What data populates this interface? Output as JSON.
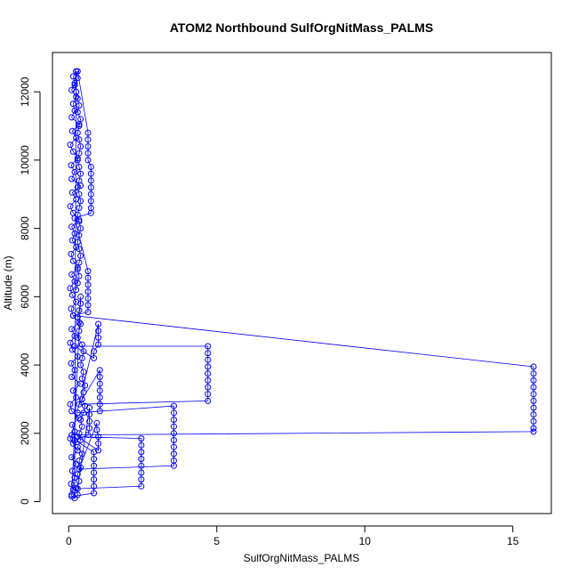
{
  "chart_data": {
    "type": "scatter",
    "title": "ATOM2 Northbound SulfOrgNitMass_PALMS",
    "xlabel": "SulfOrgNitMass_PALMS",
    "ylabel": "Altitude (m)",
    "xlim": [
      -0.55,
      16.3
    ],
    "ylim": [
      -350,
      13150
    ],
    "x_ticks": [
      0,
      5,
      10,
      15
    ],
    "y_ticks": [
      0,
      2000,
      4000,
      6000,
      8000,
      10000,
      12000
    ],
    "x_tick_labels": [
      "0",
      "5",
      "10",
      "15"
    ],
    "y_tick_labels": [
      "0",
      "2000",
      "4000",
      "6000",
      "8000",
      "10000",
      "12000"
    ],
    "grid": false,
    "legend": "none",
    "color": "#0000ff",
    "marker": "open-circle",
    "connected": true,
    "series": [
      {
        "points": [
          {
            "x": 0.1,
            "y": 200
          },
          {
            "x": 0.15,
            "y": 350
          },
          {
            "x": 0.08,
            "y": 520
          },
          {
            "x": 0.2,
            "y": 700
          },
          {
            "x": 0.12,
            "y": 900
          },
          {
            "x": 0.25,
            "y": 1100
          },
          {
            "x": 0.1,
            "y": 1300
          },
          {
            "x": 0.3,
            "y": 1500
          },
          {
            "x": 0.15,
            "y": 1700
          },
          {
            "x": 0.05,
            "y": 1850
          },
          {
            "x": 0.2,
            "y": 2050
          },
          {
            "x": 0.12,
            "y": 2250
          },
          {
            "x": 0.35,
            "y": 2450
          },
          {
            "x": 0.1,
            "y": 2650
          },
          {
            "x": 0.05,
            "y": 2850
          },
          {
            "x": 0.25,
            "y": 3050
          },
          {
            "x": 0.15,
            "y": 3250
          },
          {
            "x": 0.4,
            "y": 3450
          },
          {
            "x": 0.1,
            "y": 3650
          },
          {
            "x": 0.2,
            "y": 3850
          },
          {
            "x": 0.08,
            "y": 4050
          },
          {
            "x": 0.3,
            "y": 4250
          },
          {
            "x": 0.12,
            "y": 4450
          },
          {
            "x": 0.05,
            "y": 4650
          },
          {
            "x": 0.2,
            "y": 4850
          },
          {
            "x": 0.1,
            "y": 5050
          },
          {
            "x": 0.35,
            "y": 5250
          },
          {
            "x": 0.15,
            "y": 5450
          },
          {
            "x": 0.08,
            "y": 5650
          },
          {
            "x": 0.25,
            "y": 5850
          },
          {
            "x": 0.12,
            "y": 6050
          },
          {
            "x": 0.05,
            "y": 6250
          },
          {
            "x": 0.2,
            "y": 6450
          },
          {
            "x": 0.1,
            "y": 6650
          },
          {
            "x": 0.3,
            "y": 6850
          },
          {
            "x": 0.15,
            "y": 7050
          },
          {
            "x": 0.08,
            "y": 7250
          },
          {
            "x": 0.25,
            "y": 7450
          },
          {
            "x": 0.12,
            "y": 7650
          },
          {
            "x": 0.2,
            "y": 7850
          },
          {
            "x": 0.1,
            "y": 8050
          },
          {
            "x": 0.35,
            "y": 8250
          },
          {
            "x": 0.15,
            "y": 8450
          },
          {
            "x": 0.05,
            "y": 8650
          },
          {
            "x": 0.25,
            "y": 8850
          },
          {
            "x": 0.12,
            "y": 9050
          },
          {
            "x": 0.4,
            "y": 9250
          },
          {
            "x": 0.1,
            "y": 9450
          },
          {
            "x": 0.2,
            "y": 9650
          },
          {
            "x": 0.08,
            "y": 9850
          },
          {
            "x": 0.3,
            "y": 10050
          },
          {
            "x": 0.15,
            "y": 10250
          },
          {
            "x": 0.05,
            "y": 10450
          },
          {
            "x": 0.25,
            "y": 10650
          },
          {
            "x": 0.12,
            "y": 10850
          },
          {
            "x": 0.35,
            "y": 11050
          },
          {
            "x": 0.1,
            "y": 11250
          },
          {
            "x": 0.2,
            "y": 11450
          },
          {
            "x": 0.15,
            "y": 11650
          },
          {
            "x": 0.25,
            "y": 11850
          },
          {
            "x": 0.1,
            "y": 12050
          },
          {
            "x": 0.2,
            "y": 12250
          },
          {
            "x": 0.15,
            "y": 12450
          },
          {
            "x": 0.3,
            "y": 12600
          },
          {
            "x": 0.65,
            "y": 10800
          },
          {
            "x": 0.65,
            "y": 10600
          },
          {
            "x": 0.65,
            "y": 10400
          },
          {
            "x": 0.65,
            "y": 10200
          },
          {
            "x": 0.65,
            "y": 10000
          },
          {
            "x": 0.75,
            "y": 9800
          },
          {
            "x": 0.75,
            "y": 9600
          },
          {
            "x": 0.75,
            "y": 9400
          },
          {
            "x": 0.75,
            "y": 9200
          },
          {
            "x": 0.75,
            "y": 9000
          },
          {
            "x": 0.75,
            "y": 8800
          },
          {
            "x": 0.75,
            "y": 8600
          },
          {
            "x": 0.75,
            "y": 8450
          },
          {
            "x": 0.2,
            "y": 8300
          },
          {
            "x": 0.65,
            "y": 6750
          },
          {
            "x": 0.65,
            "y": 6550
          },
          {
            "x": 0.65,
            "y": 6350
          },
          {
            "x": 0.65,
            "y": 6150
          },
          {
            "x": 0.65,
            "y": 5950
          },
          {
            "x": 0.65,
            "y": 5750
          },
          {
            "x": 0.65,
            "y": 5550
          },
          {
            "x": 0.15,
            "y": 5450
          },
          {
            "x": 15.7,
            "y": 3950
          },
          {
            "x": 15.7,
            "y": 3750
          },
          {
            "x": 15.7,
            "y": 3550
          },
          {
            "x": 15.7,
            "y": 3350
          },
          {
            "x": 15.7,
            "y": 3150
          },
          {
            "x": 15.7,
            "y": 2950
          },
          {
            "x": 15.7,
            "y": 2750
          },
          {
            "x": 15.7,
            "y": 2550
          },
          {
            "x": 15.7,
            "y": 2350
          },
          {
            "x": 15.7,
            "y": 2150
          },
          {
            "x": 15.7,
            "y": 2050
          },
          {
            "x": 0.1,
            "y": 1950
          },
          {
            "x": 1.0,
            "y": 5200
          },
          {
            "x": 1.0,
            "y": 5000
          },
          {
            "x": 1.0,
            "y": 4800
          },
          {
            "x": 1.0,
            "y": 4600
          },
          {
            "x": 0.85,
            "y": 4400
          },
          {
            "x": 0.85,
            "y": 4200
          },
          {
            "x": 0.2,
            "y": 4550
          },
          {
            "x": 4.7,
            "y": 4550
          },
          {
            "x": 4.7,
            "y": 4350
          },
          {
            "x": 4.7,
            "y": 4150
          },
          {
            "x": 4.7,
            "y": 3950
          },
          {
            "x": 4.7,
            "y": 3750
          },
          {
            "x": 4.7,
            "y": 3550
          },
          {
            "x": 4.7,
            "y": 3350
          },
          {
            "x": 4.7,
            "y": 3150
          },
          {
            "x": 4.7,
            "y": 2950
          },
          {
            "x": 0.35,
            "y": 2850
          },
          {
            "x": 1.05,
            "y": 3850
          },
          {
            "x": 1.05,
            "y": 3650
          },
          {
            "x": 1.05,
            "y": 3450
          },
          {
            "x": 1.05,
            "y": 3250
          },
          {
            "x": 1.05,
            "y": 3050
          },
          {
            "x": 1.05,
            "y": 2850
          },
          {
            "x": 1.05,
            "y": 2650
          },
          {
            "x": 0.3,
            "y": 2600
          },
          {
            "x": 3.55,
            "y": 2800
          },
          {
            "x": 3.55,
            "y": 2600
          },
          {
            "x": 3.55,
            "y": 2400
          },
          {
            "x": 3.55,
            "y": 2200
          },
          {
            "x": 3.55,
            "y": 2000
          },
          {
            "x": 3.55,
            "y": 1800
          },
          {
            "x": 3.55,
            "y": 1600
          },
          {
            "x": 3.55,
            "y": 1400
          },
          {
            "x": 3.55,
            "y": 1200
          },
          {
            "x": 3.55,
            "y": 1050
          },
          {
            "x": 0.35,
            "y": 950
          },
          {
            "x": 0.95,
            "y": 2300
          },
          {
            "x": 0.95,
            "y": 2100
          },
          {
            "x": 1.0,
            "y": 1900
          },
          {
            "x": 1.0,
            "y": 1700
          },
          {
            "x": 1.0,
            "y": 1500
          },
          {
            "x": 0.3,
            "y": 1900
          },
          {
            "x": 2.45,
            "y": 1850
          },
          {
            "x": 2.45,
            "y": 1650
          },
          {
            "x": 2.45,
            "y": 1450
          },
          {
            "x": 2.45,
            "y": 1250
          },
          {
            "x": 2.45,
            "y": 1050
          },
          {
            "x": 2.45,
            "y": 850
          },
          {
            "x": 2.45,
            "y": 650
          },
          {
            "x": 2.45,
            "y": 450
          },
          {
            "x": 0.3,
            "y": 380
          },
          {
            "x": 0.7,
            "y": 2750
          },
          {
            "x": 0.7,
            "y": 2550
          },
          {
            "x": 0.7,
            "y": 2350
          },
          {
            "x": 0.7,
            "y": 2150
          },
          {
            "x": 0.65,
            "y": 1950
          },
          {
            "x": 0.2,
            "y": 1800
          },
          {
            "x": 0.85,
            "y": 1450
          },
          {
            "x": 0.85,
            "y": 1250
          },
          {
            "x": 0.85,
            "y": 1050
          },
          {
            "x": 0.85,
            "y": 850
          },
          {
            "x": 0.85,
            "y": 650
          },
          {
            "x": 0.85,
            "y": 450
          },
          {
            "x": 0.85,
            "y": 250
          },
          {
            "x": 0.1,
            "y": 150
          },
          {
            "x": 0.4,
            "y": 6000
          },
          {
            "x": 0.4,
            "y": 5800
          },
          {
            "x": 0.35,
            "y": 5600
          },
          {
            "x": 0.3,
            "y": 5400
          },
          {
            "x": 0.4,
            "y": 5200
          },
          {
            "x": 0.35,
            "y": 5000
          },
          {
            "x": 0.3,
            "y": 4800
          },
          {
            "x": 0.45,
            "y": 4600
          },
          {
            "x": 0.5,
            "y": 4400
          },
          {
            "x": 0.45,
            "y": 4200
          },
          {
            "x": 0.4,
            "y": 4000
          },
          {
            "x": 0.5,
            "y": 3800
          },
          {
            "x": 0.45,
            "y": 3600
          },
          {
            "x": 0.55,
            "y": 3400
          },
          {
            "x": 0.5,
            "y": 3200
          },
          {
            "x": 0.45,
            "y": 3000
          },
          {
            "x": 0.55,
            "y": 2800
          },
          {
            "x": 0.5,
            "y": 2600
          },
          {
            "x": 0.4,
            "y": 2400
          },
          {
            "x": 0.45,
            "y": 2200
          },
          {
            "x": 0.35,
            "y": 2000
          },
          {
            "x": 0.4,
            "y": 1800
          },
          {
            "x": 0.3,
            "y": 1600
          },
          {
            "x": 0.45,
            "y": 1400
          },
          {
            "x": 0.35,
            "y": 1200
          },
          {
            "x": 0.4,
            "y": 1000
          },
          {
            "x": 0.3,
            "y": 800
          },
          {
            "x": 0.35,
            "y": 600
          },
          {
            "x": 0.25,
            "y": 400
          },
          {
            "x": 0.3,
            "y": 200
          },
          {
            "x": 0.2,
            "y": 100
          },
          {
            "x": 0.25,
            "y": 12600
          },
          {
            "x": 0.3,
            "y": 12400
          },
          {
            "x": 0.2,
            "y": 12200
          },
          {
            "x": 0.25,
            "y": 12000
          },
          {
            "x": 0.3,
            "y": 11800
          },
          {
            "x": 0.35,
            "y": 11600
          },
          {
            "x": 0.3,
            "y": 11400
          },
          {
            "x": 0.4,
            "y": 11200
          },
          {
            "x": 0.35,
            "y": 11000
          },
          {
            "x": 0.3,
            "y": 10800
          },
          {
            "x": 0.35,
            "y": 10600
          },
          {
            "x": 0.4,
            "y": 10400
          },
          {
            "x": 0.35,
            "y": 10200
          },
          {
            "x": 0.3,
            "y": 10000
          },
          {
            "x": 0.35,
            "y": 9800
          },
          {
            "x": 0.4,
            "y": 9600
          },
          {
            "x": 0.35,
            "y": 9400
          },
          {
            "x": 0.3,
            "y": 9200
          },
          {
            "x": 0.35,
            "y": 9000
          },
          {
            "x": 0.4,
            "y": 8800
          },
          {
            "x": 0.35,
            "y": 8600
          },
          {
            "x": 0.3,
            "y": 8400
          },
          {
            "x": 0.35,
            "y": 8200
          },
          {
            "x": 0.4,
            "y": 8000
          },
          {
            "x": 0.35,
            "y": 7800
          },
          {
            "x": 0.3,
            "y": 7600
          },
          {
            "x": 0.35,
            "y": 7400
          },
          {
            "x": 0.4,
            "y": 7200
          },
          {
            "x": 0.35,
            "y": 7000
          },
          {
            "x": 0.3,
            "y": 6800
          },
          {
            "x": 0.35,
            "y": 6600
          },
          {
            "x": 0.3,
            "y": 6400
          },
          {
            "x": 0.25,
            "y": 6200
          }
        ]
      }
    ]
  }
}
